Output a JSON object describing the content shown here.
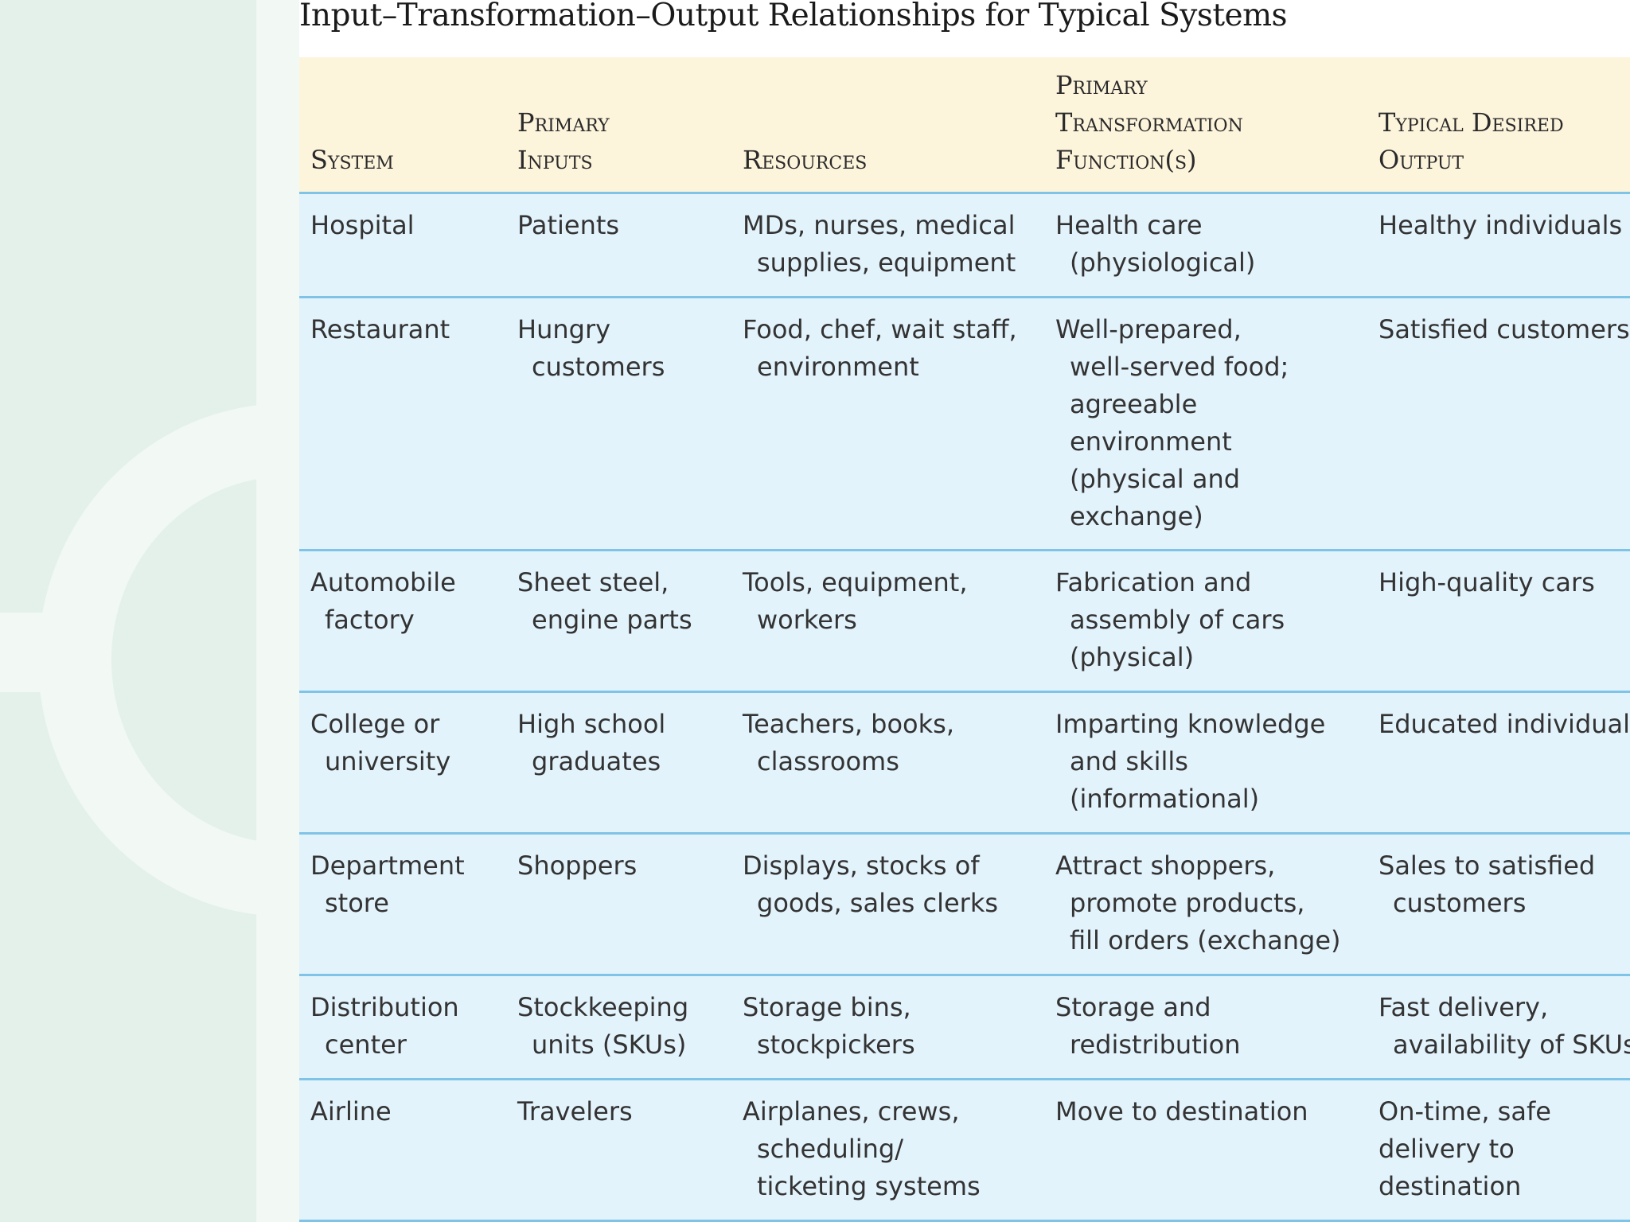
{
  "title": "Input–Transformation–Output Relationships for Typical Systems",
  "colors": {
    "header_bg": "#fdf4dc",
    "row_bg": "#e3f3fc",
    "rule": "#7fc4e6",
    "deco": "#e4f1ea"
  },
  "headers": {
    "system": [
      "System"
    ],
    "inputs": [
      "Primary",
      "Inputs"
    ],
    "resources": [
      "Resources"
    ],
    "transformation": [
      "Primary",
      "Transformation",
      "Function(s)"
    ],
    "output": [
      "Typical Desired",
      "Output"
    ]
  },
  "rows": [
    {
      "system": [
        "Hospital"
      ],
      "inputs": [
        "Patients"
      ],
      "resources": [
        "MDs, nurses, medical",
        "supplies, equipment"
      ],
      "transformation": [
        "Health care",
        "(physiological)"
      ],
      "output": [
        "Healthy individuals"
      ]
    },
    {
      "system": [
        "Restaurant"
      ],
      "inputs": [
        "Hungry",
        "customers"
      ],
      "resources": [
        "Food, chef, wait staff,",
        "environment"
      ],
      "transformation": [
        "Well-prepared,",
        "well-served food;",
        "agreeable",
        "environment",
        "(physical and",
        "exchange)"
      ],
      "output": [
        "Satisfied customers"
      ]
    },
    {
      "system": [
        "Automobile",
        "factory"
      ],
      "inputs": [
        "Sheet steel,",
        "engine parts"
      ],
      "resources": [
        "Tools, equipment,",
        "workers"
      ],
      "transformation": [
        "Fabrication and",
        "assembly of cars",
        "(physical)"
      ],
      "output": [
        "High-quality cars"
      ]
    },
    {
      "system": [
        "College or",
        "university"
      ],
      "inputs": [
        "High school",
        "graduates"
      ],
      "resources": [
        "Teachers, books,",
        "classrooms"
      ],
      "transformation": [
        "Imparting knowledge",
        "and skills",
        "(informational)"
      ],
      "output": [
        "Educated individuals"
      ]
    },
    {
      "system": [
        "Department",
        "store"
      ],
      "inputs": [
        "Shoppers"
      ],
      "resources": [
        "Displays, stocks of",
        "goods, sales clerks"
      ],
      "transformation": [
        "Attract shoppers,",
        "promote products,",
        "fill orders (exchange)"
      ],
      "output": [
        "Sales to satisfied",
        "customers"
      ]
    },
    {
      "system": [
        "Distribution",
        "center"
      ],
      "inputs": [
        "Stockkeeping",
        "units (SKUs)"
      ],
      "resources": [
        "Storage bins,",
        "stockpickers"
      ],
      "transformation": [
        "Storage and",
        "redistribution"
      ],
      "output": [
        "Fast delivery,",
        "availability of SKUs"
      ]
    },
    {
      "system": [
        "Airline"
      ],
      "inputs": [
        "Travelers"
      ],
      "resources": [
        "Airplanes, crews,",
        "scheduling/",
        "ticketing systems"
      ],
      "transformation": [
        "Move to destination"
      ],
      "output": [
        "On-time, safe",
        "delivery to",
        "destination"
      ]
    }
  ]
}
